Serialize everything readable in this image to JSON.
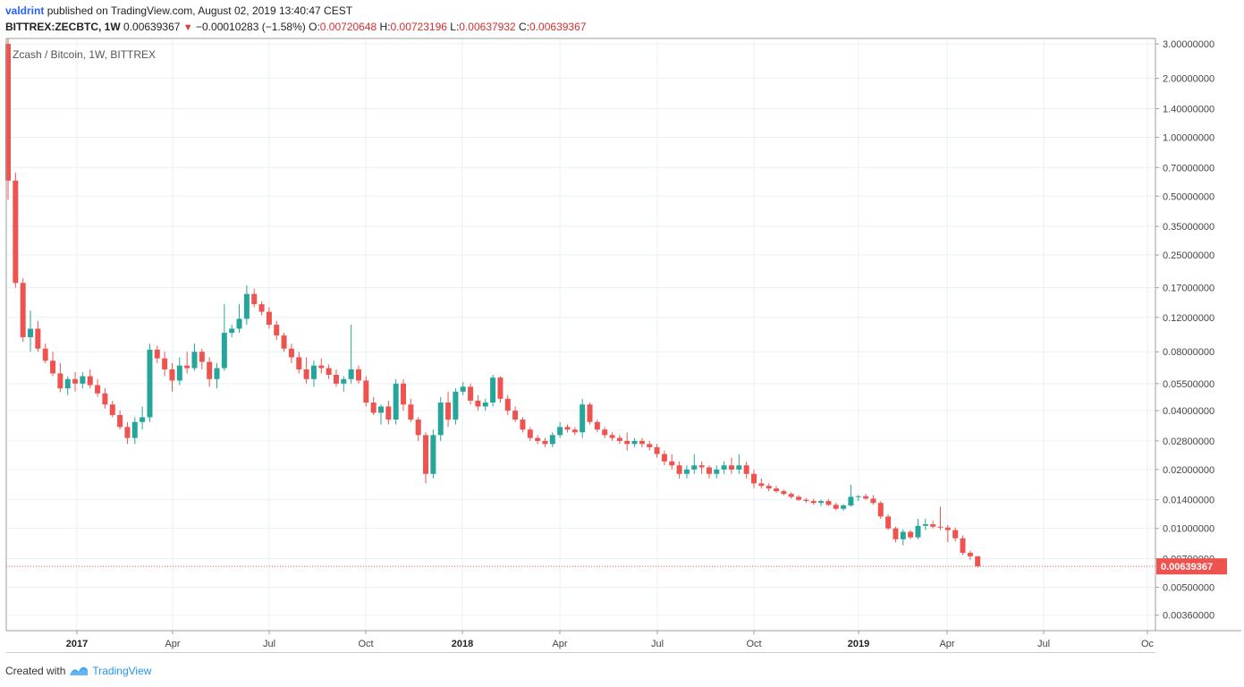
{
  "header": {
    "author": "valdrint",
    "published_text": "published on TradingView.com, August 02, 2019 13:40:47 CEST",
    "symbol": "BITTREX:ZECBTC, 1W",
    "last": "0.00639367",
    "change": "−0.00010283 (−1.58%)",
    "open_label": "O:",
    "open": "0.00720648",
    "high_label": "H:",
    "high": "0.00723196",
    "low_label": "L:",
    "low": "0.00637932",
    "close_label": "C:",
    "close": "0.00639367"
  },
  "chart_data": {
    "type": "candlestick",
    "title": "Zcash / Bitcoin, 1W, BITTREX",
    "y_scale": "log",
    "ylim": [
      0.003,
      3.2
    ],
    "y_ticks": [
      "3.00000000",
      "2.00000000",
      "1.40000000",
      "1.00000000",
      "0.70000000",
      "0.50000000",
      "0.35000000",
      "0.25000000",
      "0.17000000",
      "0.12000000",
      "0.08000000",
      "0.05500000",
      "0.04000000",
      "0.02800000",
      "0.02000000",
      "0.01400000",
      "0.01000000",
      "0.00700000",
      "0.00500000",
      "0.00360000"
    ],
    "x_ticks": [
      "2017",
      "Apr",
      "Jul",
      "Oct",
      "2018",
      "Apr",
      "Jul",
      "Oct",
      "2019",
      "Apr",
      "Jul",
      "Oc"
    ],
    "bold_x_ticks": [
      "2017",
      "2018",
      "2019"
    ],
    "last_price_label": "0.00639367",
    "colors": {
      "up": "#26a69a",
      "down": "#ef5350",
      "grid": "#e8f1f5",
      "last_line": "#ef5350"
    },
    "candles": [
      [
        3.0,
        3.2,
        0.48,
        0.6
      ],
      [
        0.6,
        0.66,
        0.17,
        0.18
      ],
      [
        0.18,
        0.19,
        0.09,
        0.095
      ],
      [
        0.095,
        0.13,
        0.08,
        0.105
      ],
      [
        0.105,
        0.115,
        0.08,
        0.083
      ],
      [
        0.083,
        0.088,
        0.07,
        0.072
      ],
      [
        0.072,
        0.08,
        0.06,
        0.062
      ],
      [
        0.062,
        0.07,
        0.05,
        0.052
      ],
      [
        0.052,
        0.06,
        0.048,
        0.058
      ],
      [
        0.058,
        0.063,
        0.05,
        0.055
      ],
      [
        0.055,
        0.063,
        0.052,
        0.06
      ],
      [
        0.06,
        0.065,
        0.052,
        0.054
      ],
      [
        0.054,
        0.058,
        0.047,
        0.049
      ],
      [
        0.049,
        0.052,
        0.041,
        0.043
      ],
      [
        0.043,
        0.045,
        0.037,
        0.038
      ],
      [
        0.038,
        0.04,
        0.032,
        0.033
      ],
      [
        0.033,
        0.035,
        0.027,
        0.029
      ],
      [
        0.029,
        0.037,
        0.027,
        0.035
      ],
      [
        0.035,
        0.042,
        0.032,
        0.037
      ],
      [
        0.037,
        0.088,
        0.035,
        0.082
      ],
      [
        0.082,
        0.086,
        0.07,
        0.074
      ],
      [
        0.074,
        0.08,
        0.06,
        0.065
      ],
      [
        0.065,
        0.07,
        0.05,
        0.057
      ],
      [
        0.057,
        0.075,
        0.054,
        0.068
      ],
      [
        0.068,
        0.08,
        0.062,
        0.066
      ],
      [
        0.066,
        0.088,
        0.064,
        0.08
      ],
      [
        0.08,
        0.083,
        0.065,
        0.071
      ],
      [
        0.071,
        0.075,
        0.053,
        0.058
      ],
      [
        0.058,
        0.07,
        0.052,
        0.066
      ],
      [
        0.066,
        0.14,
        0.064,
        0.1
      ],
      [
        0.1,
        0.11,
        0.095,
        0.105
      ],
      [
        0.105,
        0.14,
        0.1,
        0.118
      ],
      [
        0.118,
        0.175,
        0.11,
        0.158
      ],
      [
        0.158,
        0.168,
        0.135,
        0.14
      ],
      [
        0.14,
        0.145,
        0.123,
        0.128
      ],
      [
        0.128,
        0.135,
        0.105,
        0.11
      ],
      [
        0.11,
        0.115,
        0.092,
        0.097
      ],
      [
        0.097,
        0.1,
        0.08,
        0.083
      ],
      [
        0.083,
        0.088,
        0.07,
        0.075
      ],
      [
        0.075,
        0.08,
        0.062,
        0.065
      ],
      [
        0.065,
        0.075,
        0.055,
        0.058
      ],
      [
        0.058,
        0.072,
        0.053,
        0.068
      ],
      [
        0.068,
        0.074,
        0.062,
        0.066
      ],
      [
        0.066,
        0.069,
        0.058,
        0.061
      ],
      [
        0.061,
        0.065,
        0.053,
        0.055
      ],
      [
        0.055,
        0.06,
        0.05,
        0.058
      ],
      [
        0.058,
        0.11,
        0.055,
        0.065
      ],
      [
        0.065,
        0.068,
        0.055,
        0.057
      ],
      [
        0.057,
        0.06,
        0.042,
        0.044
      ],
      [
        0.044,
        0.047,
        0.038,
        0.039
      ],
      [
        0.039,
        0.043,
        0.034,
        0.042
      ],
      [
        0.042,
        0.045,
        0.034,
        0.036
      ],
      [
        0.036,
        0.058,
        0.034,
        0.055
      ],
      [
        0.055,
        0.058,
        0.04,
        0.043
      ],
      [
        0.043,
        0.046,
        0.035,
        0.036
      ],
      [
        0.036,
        0.037,
        0.028,
        0.03
      ],
      [
        0.03,
        0.031,
        0.017,
        0.019
      ],
      [
        0.019,
        0.032,
        0.018,
        0.03
      ],
      [
        0.03,
        0.047,
        0.028,
        0.044
      ],
      [
        0.044,
        0.05,
        0.033,
        0.036
      ],
      [
        0.036,
        0.052,
        0.034,
        0.05
      ],
      [
        0.05,
        0.056,
        0.048,
        0.053
      ],
      [
        0.053,
        0.055,
        0.043,
        0.045
      ],
      [
        0.045,
        0.048,
        0.04,
        0.042
      ],
      [
        0.042,
        0.046,
        0.04,
        0.044
      ],
      [
        0.044,
        0.061,
        0.042,
        0.059
      ],
      [
        0.059,
        0.06,
        0.044,
        0.046
      ],
      [
        0.046,
        0.048,
        0.038,
        0.04
      ],
      [
        0.04,
        0.042,
        0.035,
        0.036
      ],
      [
        0.036,
        0.037,
        0.031,
        0.032
      ],
      [
        0.032,
        0.033,
        0.028,
        0.029
      ],
      [
        0.029,
        0.03,
        0.027,
        0.028
      ],
      [
        0.028,
        0.029,
        0.026,
        0.027
      ],
      [
        0.027,
        0.031,
        0.026,
        0.03
      ],
      [
        0.03,
        0.035,
        0.029,
        0.033
      ],
      [
        0.033,
        0.034,
        0.031,
        0.032
      ],
      [
        0.032,
        0.033,
        0.03,
        0.031
      ],
      [
        0.031,
        0.046,
        0.029,
        0.043
      ],
      [
        0.043,
        0.044,
        0.034,
        0.035
      ],
      [
        0.035,
        0.036,
        0.031,
        0.032
      ],
      [
        0.032,
        0.033,
        0.029,
        0.03
      ],
      [
        0.03,
        0.031,
        0.028,
        0.029
      ],
      [
        0.029,
        0.03,
        0.027,
        0.028
      ],
      [
        0.028,
        0.031,
        0.025,
        0.027
      ],
      [
        0.027,
        0.029,
        0.026,
        0.028
      ],
      [
        0.028,
        0.029,
        0.026,
        0.027
      ],
      [
        0.027,
        0.028,
        0.025,
        0.026
      ],
      [
        0.026,
        0.027,
        0.023,
        0.024
      ],
      [
        0.024,
        0.025,
        0.021,
        0.022
      ],
      [
        0.022,
        0.024,
        0.02,
        0.021
      ],
      [
        0.021,
        0.022,
        0.018,
        0.019
      ],
      [
        0.019,
        0.021,
        0.018,
        0.02
      ],
      [
        0.02,
        0.024,
        0.019,
        0.021
      ],
      [
        0.021,
        0.022,
        0.019,
        0.0205
      ],
      [
        0.0205,
        0.021,
        0.018,
        0.019
      ],
      [
        0.019,
        0.021,
        0.018,
        0.02
      ],
      [
        0.02,
        0.022,
        0.019,
        0.021
      ],
      [
        0.021,
        0.023,
        0.019,
        0.02
      ],
      [
        0.02,
        0.024,
        0.019,
        0.021
      ],
      [
        0.021,
        0.022,
        0.018,
        0.019
      ],
      [
        0.019,
        0.02,
        0.016,
        0.017
      ],
      [
        0.017,
        0.018,
        0.016,
        0.0165
      ],
      [
        0.0165,
        0.017,
        0.0155,
        0.016
      ],
      [
        0.016,
        0.0165,
        0.0152,
        0.0155
      ],
      [
        0.0155,
        0.0158,
        0.0148,
        0.015
      ],
      [
        0.015,
        0.0153,
        0.0142,
        0.0145
      ],
      [
        0.0145,
        0.0148,
        0.0138,
        0.014
      ],
      [
        0.014,
        0.0143,
        0.0135,
        0.0138
      ],
      [
        0.0138,
        0.0142,
        0.0132,
        0.0135
      ],
      [
        0.0135,
        0.014,
        0.013,
        0.0138
      ],
      [
        0.0138,
        0.0141,
        0.013,
        0.0132
      ],
      [
        0.0132,
        0.0135,
        0.0124,
        0.0126
      ],
      [
        0.0126,
        0.0133,
        0.0123,
        0.0131
      ],
      [
        0.0131,
        0.0167,
        0.0129,
        0.0145
      ],
      [
        0.0145,
        0.0148,
        0.0138,
        0.0146
      ],
      [
        0.0146,
        0.015,
        0.014,
        0.0142
      ],
      [
        0.0142,
        0.0148,
        0.0132,
        0.0135
      ],
      [
        0.0135,
        0.0138,
        0.0112,
        0.0115
      ],
      [
        0.0115,
        0.0118,
        0.0098,
        0.01
      ],
      [
        0.01,
        0.0102,
        0.0085,
        0.0088
      ],
      [
        0.0088,
        0.0099,
        0.0082,
        0.0096
      ],
      [
        0.0096,
        0.0098,
        0.0088,
        0.009
      ],
      [
        0.009,
        0.0112,
        0.0088,
        0.0103
      ],
      [
        0.0103,
        0.0112,
        0.0098,
        0.0105
      ],
      [
        0.0105,
        0.0109,
        0.01,
        0.0102
      ],
      [
        0.0102,
        0.0129,
        0.0098,
        0.0101
      ],
      [
        0.0101,
        0.0104,
        0.0085,
        0.0098
      ],
      [
        0.0098,
        0.0101,
        0.0086,
        0.0089
      ],
      [
        0.0089,
        0.0092,
        0.0073,
        0.0075
      ],
      [
        0.0075,
        0.0077,
        0.0069,
        0.0072
      ],
      [
        0.0072,
        0.0072,
        0.0063,
        0.0064
      ]
    ]
  },
  "footer": {
    "created_with": "Created with",
    "brand": "TradingView"
  }
}
